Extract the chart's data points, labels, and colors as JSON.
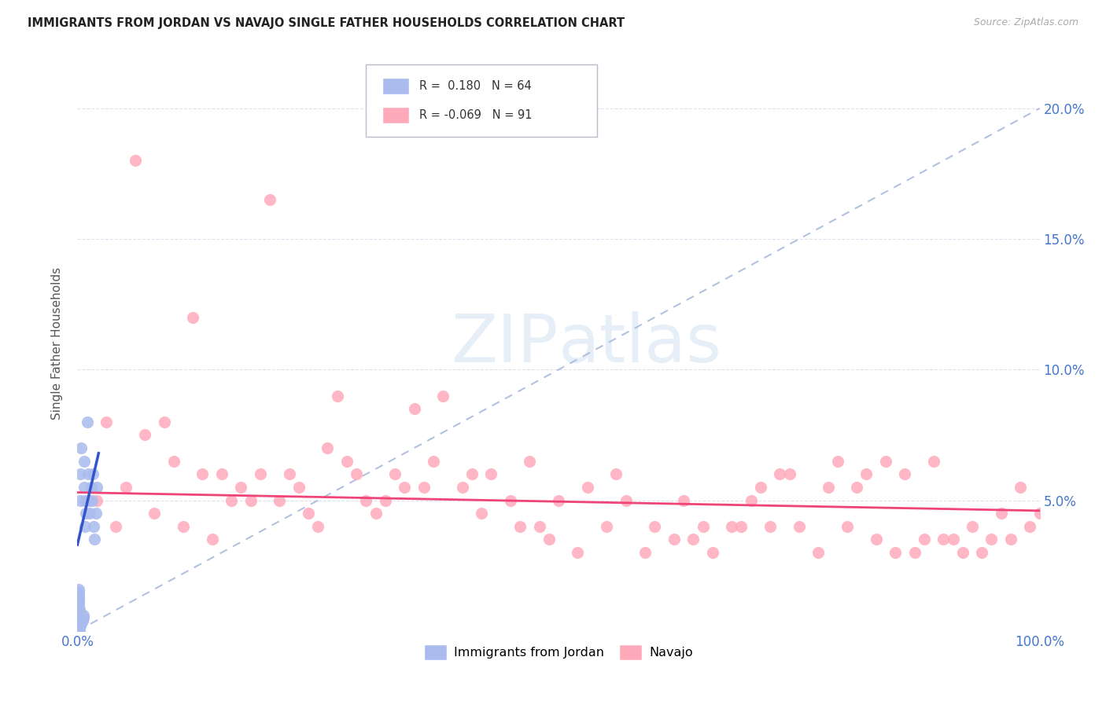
{
  "title": "IMMIGRANTS FROM JORDAN VS NAVAJO SINGLE FATHER HOUSEHOLDS CORRELATION CHART",
  "source": "Source: ZipAtlas.com",
  "ylabel": "Single Father Households",
  "legend_labels": [
    "Immigrants from Jordan",
    "Navajo"
  ],
  "r_blue": 0.18,
  "n_blue": 64,
  "r_pink": -0.069,
  "n_pink": 91,
  "blue_color": "#aabbee",
  "pink_color": "#ffaabb",
  "blue_line_color": "#3355cc",
  "pink_line_color": "#ee4477",
  "diag_color": "#aabbdd",
  "xlim": [
    0.0,
    1.0
  ],
  "ylim": [
    0.0,
    0.22
  ],
  "blue_x": [
    0.001,
    0.001,
    0.001,
    0.001,
    0.001,
    0.001,
    0.001,
    0.001,
    0.001,
    0.001,
    0.001,
    0.001,
    0.001,
    0.001,
    0.001,
    0.001,
    0.001,
    0.001,
    0.001,
    0.001,
    0.002,
    0.002,
    0.002,
    0.002,
    0.002,
    0.002,
    0.002,
    0.002,
    0.002,
    0.002,
    0.002,
    0.002,
    0.003,
    0.003,
    0.003,
    0.003,
    0.003,
    0.003,
    0.003,
    0.003,
    0.004,
    0.004,
    0.004,
    0.004,
    0.005,
    0.005,
    0.006,
    0.006,
    0.007,
    0.007,
    0.008,
    0.008,
    0.009,
    0.01,
    0.011,
    0.012,
    0.013,
    0.014,
    0.015,
    0.016,
    0.017,
    0.018,
    0.019,
    0.02
  ],
  "blue_y": [
    0.0,
    0.001,
    0.002,
    0.003,
    0.004,
    0.005,
    0.005,
    0.006,
    0.006,
    0.007,
    0.007,
    0.008,
    0.009,
    0.01,
    0.011,
    0.012,
    0.013,
    0.014,
    0.015,
    0.016,
    0.0,
    0.001,
    0.002,
    0.003,
    0.004,
    0.005,
    0.006,
    0.007,
    0.008,
    0.005,
    0.006,
    0.007,
    0.002,
    0.003,
    0.004,
    0.005,
    0.006,
    0.007,
    0.05,
    0.06,
    0.003,
    0.004,
    0.005,
    0.07,
    0.004,
    0.005,
    0.005,
    0.006,
    0.055,
    0.065,
    0.04,
    0.05,
    0.045,
    0.08,
    0.06,
    0.05,
    0.045,
    0.055,
    0.05,
    0.06,
    0.04,
    0.035,
    0.045,
    0.055
  ],
  "pink_x": [
    0.02,
    0.04,
    0.05,
    0.07,
    0.09,
    0.1,
    0.11,
    0.13,
    0.14,
    0.15,
    0.16,
    0.17,
    0.18,
    0.2,
    0.21,
    0.22,
    0.23,
    0.24,
    0.25,
    0.27,
    0.28,
    0.29,
    0.3,
    0.31,
    0.32,
    0.33,
    0.35,
    0.37,
    0.38,
    0.4,
    0.41,
    0.43,
    0.45,
    0.47,
    0.48,
    0.5,
    0.52,
    0.53,
    0.55,
    0.57,
    0.59,
    0.6,
    0.62,
    0.63,
    0.65,
    0.66,
    0.68,
    0.7,
    0.71,
    0.72,
    0.73,
    0.75,
    0.77,
    0.78,
    0.79,
    0.8,
    0.82,
    0.83,
    0.84,
    0.85,
    0.86,
    0.87,
    0.88,
    0.89,
    0.9,
    0.91,
    0.92,
    0.93,
    0.94,
    0.95,
    0.96,
    0.97,
    0.98,
    0.99,
    1.0,
    0.06,
    0.12,
    0.19,
    0.26,
    0.34,
    0.42,
    0.49,
    0.56,
    0.64,
    0.69,
    0.74,
    0.81,
    0.03,
    0.08,
    0.36,
    0.46
  ],
  "pink_y": [
    0.05,
    0.04,
    0.055,
    0.075,
    0.08,
    0.065,
    0.04,
    0.06,
    0.035,
    0.06,
    0.05,
    0.055,
    0.05,
    0.165,
    0.05,
    0.06,
    0.055,
    0.045,
    0.04,
    0.09,
    0.065,
    0.06,
    0.05,
    0.045,
    0.05,
    0.06,
    0.085,
    0.065,
    0.09,
    0.055,
    0.06,
    0.06,
    0.05,
    0.065,
    0.04,
    0.05,
    0.03,
    0.055,
    0.04,
    0.05,
    0.03,
    0.04,
    0.035,
    0.05,
    0.04,
    0.03,
    0.04,
    0.05,
    0.055,
    0.04,
    0.06,
    0.04,
    0.03,
    0.055,
    0.065,
    0.04,
    0.06,
    0.035,
    0.065,
    0.03,
    0.06,
    0.03,
    0.035,
    0.065,
    0.035,
    0.035,
    0.03,
    0.04,
    0.03,
    0.035,
    0.045,
    0.035,
    0.055,
    0.04,
    0.045,
    0.18,
    0.12,
    0.06,
    0.07,
    0.055,
    0.045,
    0.035,
    0.06,
    0.035,
    0.04,
    0.06,
    0.055,
    0.08,
    0.045,
    0.055,
    0.04
  ]
}
